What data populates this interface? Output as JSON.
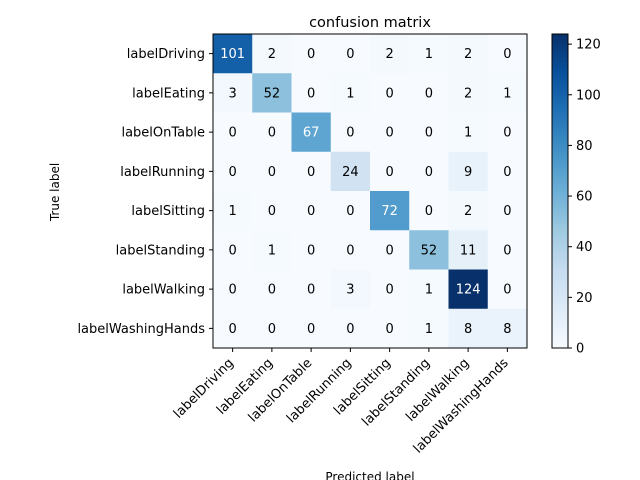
{
  "chart_data": {
    "type": "heatmap",
    "title": "confusion matrix",
    "xlabel": "Predicted label",
    "ylabel": "True label",
    "labels": [
      "labelDriving",
      "labelEating",
      "labelOnTable",
      "labelRunning",
      "labelSitting",
      "labelStanding",
      "labelWalking",
      "labelWashingHands"
    ],
    "matrix": [
      [
        101,
        2,
        0,
        0,
        2,
        1,
        2,
        0
      ],
      [
        3,
        52,
        0,
        1,
        0,
        0,
        2,
        1
      ],
      [
        0,
        0,
        67,
        0,
        0,
        0,
        1,
        0
      ],
      [
        0,
        0,
        0,
        24,
        0,
        0,
        9,
        0
      ],
      [
        1,
        0,
        0,
        0,
        72,
        0,
        2,
        0
      ],
      [
        0,
        1,
        0,
        0,
        0,
        52,
        11,
        0
      ],
      [
        0,
        0,
        0,
        3,
        0,
        1,
        124,
        0
      ],
      [
        0,
        0,
        0,
        0,
        0,
        1,
        8,
        8
      ]
    ],
    "colormap": "Blues",
    "vmin": 0,
    "vmax": 124,
    "colorbar_ticks": [
      0,
      20,
      40,
      60,
      80,
      100,
      120
    ]
  }
}
